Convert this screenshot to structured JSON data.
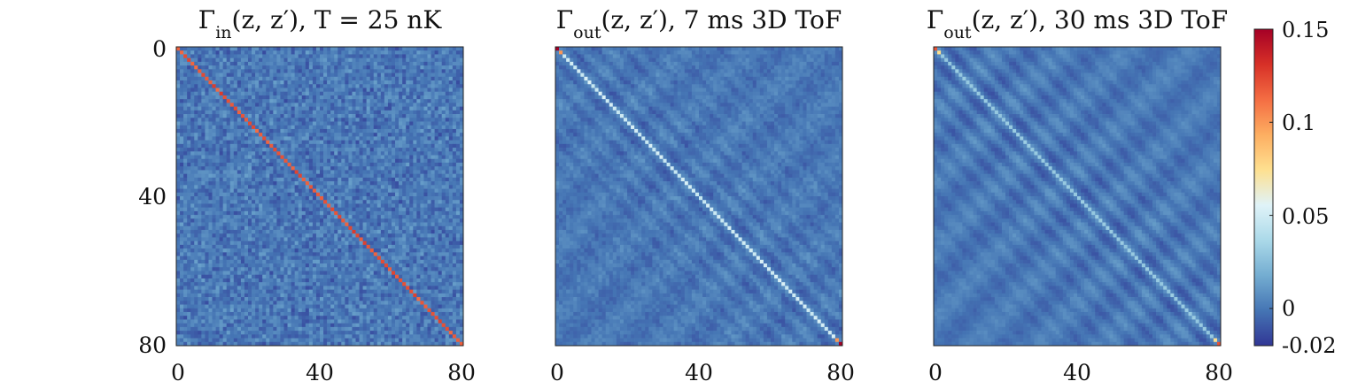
{
  "chart_data": [
    {
      "type": "heatmap",
      "title": "Γin(z, z′), T = 25 nK",
      "title_parts": {
        "symbol": "Γ",
        "sub": "in",
        "rest": "(z, z′), T = 25 nK"
      },
      "matrix_size": 80,
      "xticks": [
        "0",
        "40",
        "80"
      ],
      "yticks": [
        "0",
        "40",
        "80"
      ],
      "xlim": [
        0,
        80
      ],
      "ylim": [
        80,
        0
      ],
      "diagonal_value": 0.12,
      "background_value": 0.0,
      "noise_amplitude": 0.008,
      "stripe_amplitude": 0.0
    },
    {
      "type": "heatmap",
      "title": "Γout(z, z′), 7 ms 3D ToF",
      "title_parts": {
        "symbol": "Γ",
        "sub": "out",
        "rest": "(z, z′), 7 ms 3D ToF"
      },
      "matrix_size": 80,
      "xticks": [
        "0",
        "40",
        "80"
      ],
      "yticks": [],
      "xlim": [
        0,
        80
      ],
      "ylim": [
        80,
        0
      ],
      "diagonal_value": 0.05,
      "corner_value": 0.15,
      "background_value": 0.0,
      "noise_amplitude": 0.004,
      "stripe_amplitude": 0.006
    },
    {
      "type": "heatmap",
      "title": "Γout(z, z′), 30 ms 3D ToF",
      "title_parts": {
        "symbol": "Γ",
        "sub": "out",
        "rest": "(z, z′), 30 ms 3D ToF"
      },
      "matrix_size": 80,
      "xticks": [
        "0",
        "40",
        "80"
      ],
      "yticks": [],
      "xlim": [
        0,
        80
      ],
      "ylim": [
        80,
        0
      ],
      "diagonal_value": 0.03,
      "corner_value": 0.12,
      "background_value": 0.0,
      "noise_amplitude": 0.002,
      "stripe_amplitude": 0.008
    }
  ],
  "colorbar": {
    "ticks": [
      "0.15",
      "0.1",
      "0.05",
      "0",
      "-0.02"
    ],
    "tick_values": [
      0.15,
      0.1,
      0.05,
      0,
      -0.02
    ],
    "range": [
      -0.02,
      0.15
    ],
    "colormap": [
      "#313695",
      "#4575b4",
      "#74add1",
      "#abd9e9",
      "#e0f3f8",
      "#fee090",
      "#fdae61",
      "#f46d43",
      "#d73027",
      "#a50026"
    ]
  }
}
